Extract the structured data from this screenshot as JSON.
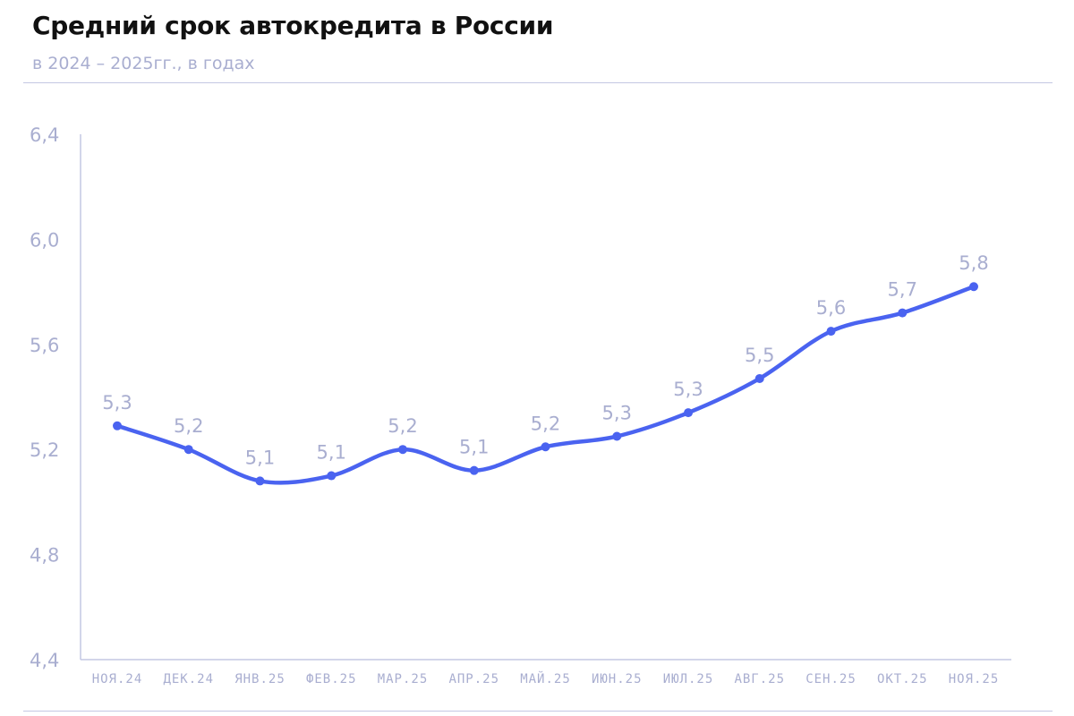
{
  "title": "Средний срок автокредита в России",
  "subtitle": "в 2024 – 2025гг., в годах",
  "colors": {
    "line": "#4a63f0",
    "axis": "#c4c7e3",
    "text": "#a9aed0",
    "title": "#111111"
  },
  "chart_data": {
    "type": "line",
    "title": "Средний срок автокредита в России",
    "subtitle": "в 2024 – 2025гг., в годах",
    "categories": [
      "НОЯ.24",
      "ДЕК.24",
      "ЯНВ.25",
      "ФЕВ.25",
      "МАР.25",
      "АПР.25",
      "МАЙ.25",
      "ИЮН.25",
      "ИЮЛ.25",
      "АВГ.25",
      "СЕН.25",
      "ОКТ.25",
      "НОЯ.25"
    ],
    "values": [
      5.29,
      5.2,
      5.08,
      5.1,
      5.2,
      5.12,
      5.21,
      5.25,
      5.34,
      5.47,
      5.65,
      5.72,
      5.82
    ],
    "labels": [
      "5,3",
      "5,2",
      "5,1",
      "5,1",
      "5,2",
      "5,1",
      "5,2",
      "5,3",
      "5,3",
      "5,5",
      "5,6",
      "5,7",
      "5,8"
    ],
    "yticks": [
      "6,4",
      "6,0",
      "5,6",
      "5,2",
      "4,8",
      "4,4"
    ],
    "ytick_values": [
      6.4,
      6.0,
      5.6,
      5.2,
      4.8,
      4.4
    ],
    "ylim": [
      4.4,
      6.4
    ],
    "xlabel": "",
    "ylabel": "",
    "grid": false,
    "smooth": true
  }
}
